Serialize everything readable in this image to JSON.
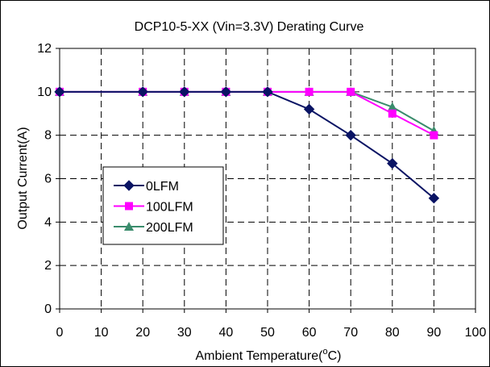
{
  "chart_data": {
    "type": "line",
    "title": "DCP10-5-XX  (Vin=3.3V) Derating Curve",
    "xlabel": "Ambient Temperature(",
    "xlabel_superscript": "o",
    "xlabel_suffix": "C)",
    "ylabel": "Output Current(A)",
    "xlim": [
      0,
      100
    ],
    "ylim": [
      0,
      12
    ],
    "x_ticks": [
      0,
      10,
      20,
      30,
      40,
      50,
      60,
      70,
      80,
      90,
      100
    ],
    "y_ticks": [
      0,
      2,
      4,
      6,
      8,
      10,
      12
    ],
    "grid": true,
    "grid_style": "dashed",
    "legend_position": "left-middle",
    "series": [
      {
        "name": "0LFM",
        "color": "#0a1464",
        "marker": "diamond",
        "x": [
          0,
          20,
          30,
          40,
          50,
          60,
          70,
          80,
          90
        ],
        "y": [
          10,
          10,
          10,
          10,
          10,
          9.2,
          8,
          6.7,
          5.1
        ]
      },
      {
        "name": "100LFM",
        "color": "#ff00ff",
        "marker": "square",
        "x": [
          0,
          20,
          30,
          40,
          50,
          60,
          70,
          80,
          90
        ],
        "y": [
          10,
          10,
          10,
          10,
          10,
          10,
          10,
          9,
          8
        ]
      },
      {
        "name": "200LFM",
        "color": "#3a8c6c",
        "marker": "triangle",
        "x": [
          0,
          20,
          30,
          40,
          50,
          60,
          70,
          80,
          90
        ],
        "y": [
          10,
          10,
          10,
          10,
          10,
          10,
          10,
          9.3,
          8.2
        ]
      }
    ]
  }
}
